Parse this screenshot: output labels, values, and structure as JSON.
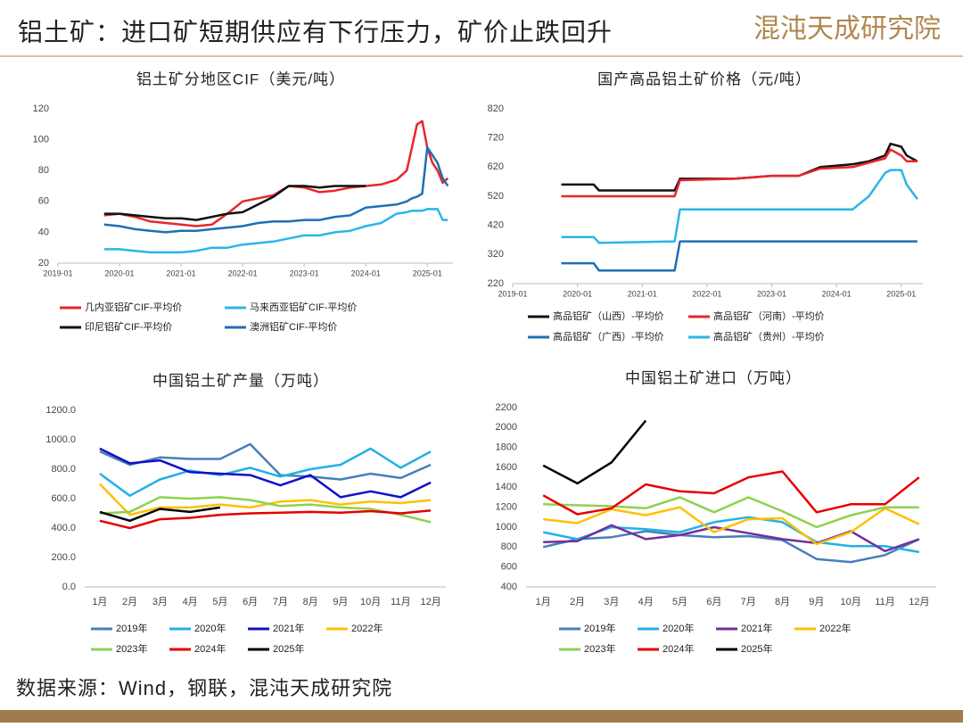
{
  "header": {
    "title": "铝土矿：进口矿短期供应有下行压力，矿价止跌回升",
    "logo": "混沌天成研究院"
  },
  "source": "数据来源：Wind，钢联，混沌天成研究院",
  "chart_data": [
    {
      "type": "line",
      "title": "铝土矿分地区CIF（美元/吨）",
      "x": [
        "2019-10",
        "2020-01",
        "2020-04",
        "2020-07",
        "2020-10",
        "2021-01",
        "2021-04",
        "2021-07",
        "2021-10",
        "2022-01",
        "2022-04",
        "2022-07",
        "2022-10",
        "2023-01",
        "2023-04",
        "2023-07",
        "2023-10",
        "2024-01",
        "2024-04",
        "2024-07",
        "2024-09",
        "2024-10",
        "2024-11",
        "2024-12",
        "2025-01",
        "2025-02",
        "2025-03",
        "2025-04",
        "2025-05"
      ],
      "xlim": [
        "2019-01",
        "2025-06"
      ],
      "xticks": [
        "2019-01",
        "2020-01",
        "2021-01",
        "2022-01",
        "2023-01",
        "2024-01",
        "2025-01"
      ],
      "ylim": [
        20,
        120
      ],
      "yticks": [
        20,
        40,
        60,
        80,
        100,
        120
      ],
      "series": [
        {
          "name": "几内亚铝矿CIF-平均价",
          "color": "#e8262a",
          "values": [
            51,
            52,
            50,
            47,
            46,
            45,
            44,
            45,
            52,
            60,
            62,
            64,
            70,
            69,
            66,
            67,
            69,
            70,
            71,
            74,
            80,
            95,
            110,
            112,
            95,
            85,
            80,
            72,
            75
          ]
        },
        {
          "name": "马来西亚铝矿CIF-平均价",
          "color": "#2bb5e8",
          "values": [
            29,
            29,
            28,
            27,
            27,
            27,
            28,
            30,
            30,
            32,
            33,
            34,
            36,
            38,
            38,
            40,
            41,
            44,
            46,
            52,
            53,
            54,
            54,
            54,
            55,
            55,
            55,
            48,
            48
          ]
        },
        {
          "name": "印尼铝矿CIF-平均价",
          "color": "#111111",
          "values": [
            52,
            52,
            51,
            50,
            49,
            49,
            48,
            50,
            52,
            53,
            58,
            63,
            70,
            70,
            69,
            70,
            70,
            70,
            null,
            null,
            null,
            null,
            null,
            null,
            null,
            null,
            null,
            null,
            null
          ]
        },
        {
          "name": "澳洲铝矿CIF-平均价",
          "color": "#1f6fb4",
          "values": [
            45,
            44,
            42,
            41,
            40,
            41,
            41,
            42,
            43,
            44,
            46,
            47,
            47,
            48,
            48,
            50,
            51,
            56,
            57,
            58,
            60,
            62,
            63,
            65,
            95,
            90,
            85,
            75,
            70
          ]
        }
      ]
    },
    {
      "type": "line",
      "title": "国产高品铝土矿价格（元/吨）",
      "x": [
        "2019-10",
        "2020-04",
        "2020-05",
        "2021-07",
        "2021-08",
        "2022-06",
        "2023-01",
        "2023-06",
        "2023-10",
        "2024-04",
        "2024-07",
        "2024-10",
        "2024-11",
        "2025-01",
        "2025-02",
        "2025-04"
      ],
      "xlim": [
        "2019-01",
        "2025-05"
      ],
      "xticks": [
        "2019-01",
        "2020-01",
        "2021-01",
        "2022-01",
        "2023-01",
        "2024-01",
        "2025-01"
      ],
      "ylim": [
        220,
        820
      ],
      "yticks": [
        220,
        320,
        420,
        520,
        620,
        720,
        820
      ],
      "series": [
        {
          "name": "高品铝矿（山西）-平均价",
          "color": "#111111",
          "values": [
            560,
            560,
            540,
            540,
            580,
            580,
            590,
            590,
            620,
            630,
            640,
            660,
            700,
            690,
            660,
            640
          ]
        },
        {
          "name": "高品铝矿（河南）-平均价",
          "color": "#e8262a",
          "values": [
            520,
            520,
            520,
            520,
            575,
            580,
            590,
            590,
            615,
            620,
            635,
            650,
            680,
            660,
            640,
            640
          ]
        },
        {
          "name": "高品铝矿（广西）-平均价",
          "color": "#1f6fb4",
          "values": [
            290,
            290,
            265,
            265,
            365,
            365,
            365,
            365,
            365,
            365,
            365,
            365,
            365,
            365,
            365,
            365
          ]
        },
        {
          "name": "高品铝矿（贵州）-平均价",
          "color": "#2bb5e8",
          "values": [
            380,
            380,
            360,
            365,
            475,
            475,
            475,
            475,
            475,
            475,
            520,
            600,
            610,
            610,
            560,
            510
          ]
        }
      ]
    },
    {
      "type": "line",
      "title": "中国铝土矿产量（万吨）",
      "categories": [
        "1月",
        "2月",
        "3月",
        "4月",
        "5月",
        "6月",
        "7月",
        "8月",
        "9月",
        "10月",
        "11月",
        "12月"
      ],
      "ylim": [
        0,
        1200
      ],
      "yticks": [
        {
          "value": 0,
          "label": "0.0"
        },
        {
          "value": 200,
          "label": "200.0"
        },
        {
          "value": 400,
          "label": "400.0"
        },
        {
          "value": 600,
          "label": "600.0"
        },
        {
          "value": 800,
          "label": "800.0"
        },
        {
          "value": 1000,
          "label": "1000.0"
        },
        {
          "value": 1200,
          "label": "1200.0"
        }
      ],
      "series": [
        {
          "name": "2019年",
          "color": "#4a7ebb",
          "values": [
            920,
            830,
            880,
            870,
            870,
            970,
            760,
            750,
            730,
            770,
            740,
            830
          ]
        },
        {
          "name": "2020年",
          "color": "#22b0e6",
          "values": [
            770,
            620,
            730,
            790,
            760,
            810,
            750,
            800,
            830,
            940,
            810,
            920
          ]
        },
        {
          "name": "2021年",
          "color": "#1010c8",
          "values": [
            940,
            840,
            860,
            780,
            770,
            760,
            690,
            760,
            610,
            650,
            610,
            710
          ]
        },
        {
          "name": "2022年",
          "color": "#ffc000",
          "values": [
            700,
            490,
            540,
            540,
            560,
            540,
            580,
            590,
            560,
            580,
            570,
            590
          ]
        },
        {
          "name": "2023年",
          "color": "#8fd14f",
          "values": [
            500,
            510,
            610,
            600,
            610,
            590,
            550,
            560,
            540,
            530,
            490,
            440
          ]
        },
        {
          "name": "2024年",
          "color": "#e60000",
          "values": [
            450,
            400,
            460,
            470,
            490,
            500,
            505,
            510,
            505,
            515,
            500,
            520
          ]
        },
        {
          "name": "2025年",
          "color": "#000000",
          "values": [
            510,
            450,
            530,
            510,
            540,
            null,
            null,
            null,
            null,
            null,
            null,
            null
          ]
        }
      ]
    },
    {
      "type": "line",
      "title": "中国铝土矿进口（万吨）",
      "categories": [
        "1月",
        "2月",
        "3月",
        "4月",
        "5月",
        "6月",
        "7月",
        "8月",
        "9月",
        "10月",
        "11月",
        "12月"
      ],
      "ylim": [
        400,
        2200
      ],
      "yticks": [
        400,
        600,
        800,
        1000,
        1200,
        1400,
        1600,
        1800,
        2000,
        2200
      ],
      "series": [
        {
          "name": "2019年",
          "color": "#4a7ebb",
          "values": [
            800,
            880,
            900,
            960,
            920,
            900,
            910,
            870,
            680,
            650,
            720,
            880
          ]
        },
        {
          "name": "2020年",
          "color": "#22b0e6",
          "values": [
            950,
            880,
            1000,
            980,
            950,
            1050,
            1100,
            1050,
            850,
            810,
            810,
            750
          ]
        },
        {
          "name": "2021年",
          "color": "#7030a0",
          "values": [
            850,
            860,
            1020,
            880,
            920,
            1000,
            940,
            880,
            840,
            960,
            760,
            880
          ]
        },
        {
          "name": "2022年",
          "color": "#ffc000",
          "values": [
            1080,
            1040,
            1180,
            1120,
            1200,
            950,
            1080,
            1090,
            830,
            950,
            1190,
            1030
          ]
        },
        {
          "name": "2023年",
          "color": "#8fd14f",
          "values": [
            1230,
            1220,
            1210,
            1190,
            1300,
            1150,
            1300,
            1160,
            1000,
            1120,
            1200,
            1200
          ]
        },
        {
          "name": "2024年",
          "color": "#e60000",
          "values": [
            1320,
            1130,
            1190,
            1430,
            1360,
            1340,
            1500,
            1560,
            1150,
            1230,
            1230,
            1500
          ]
        },
        {
          "name": "2025年",
          "color": "#000000",
          "values": [
            1620,
            1440,
            1650,
            2070,
            null,
            null,
            null,
            null,
            null,
            null,
            null,
            null
          ]
        }
      ]
    }
  ]
}
